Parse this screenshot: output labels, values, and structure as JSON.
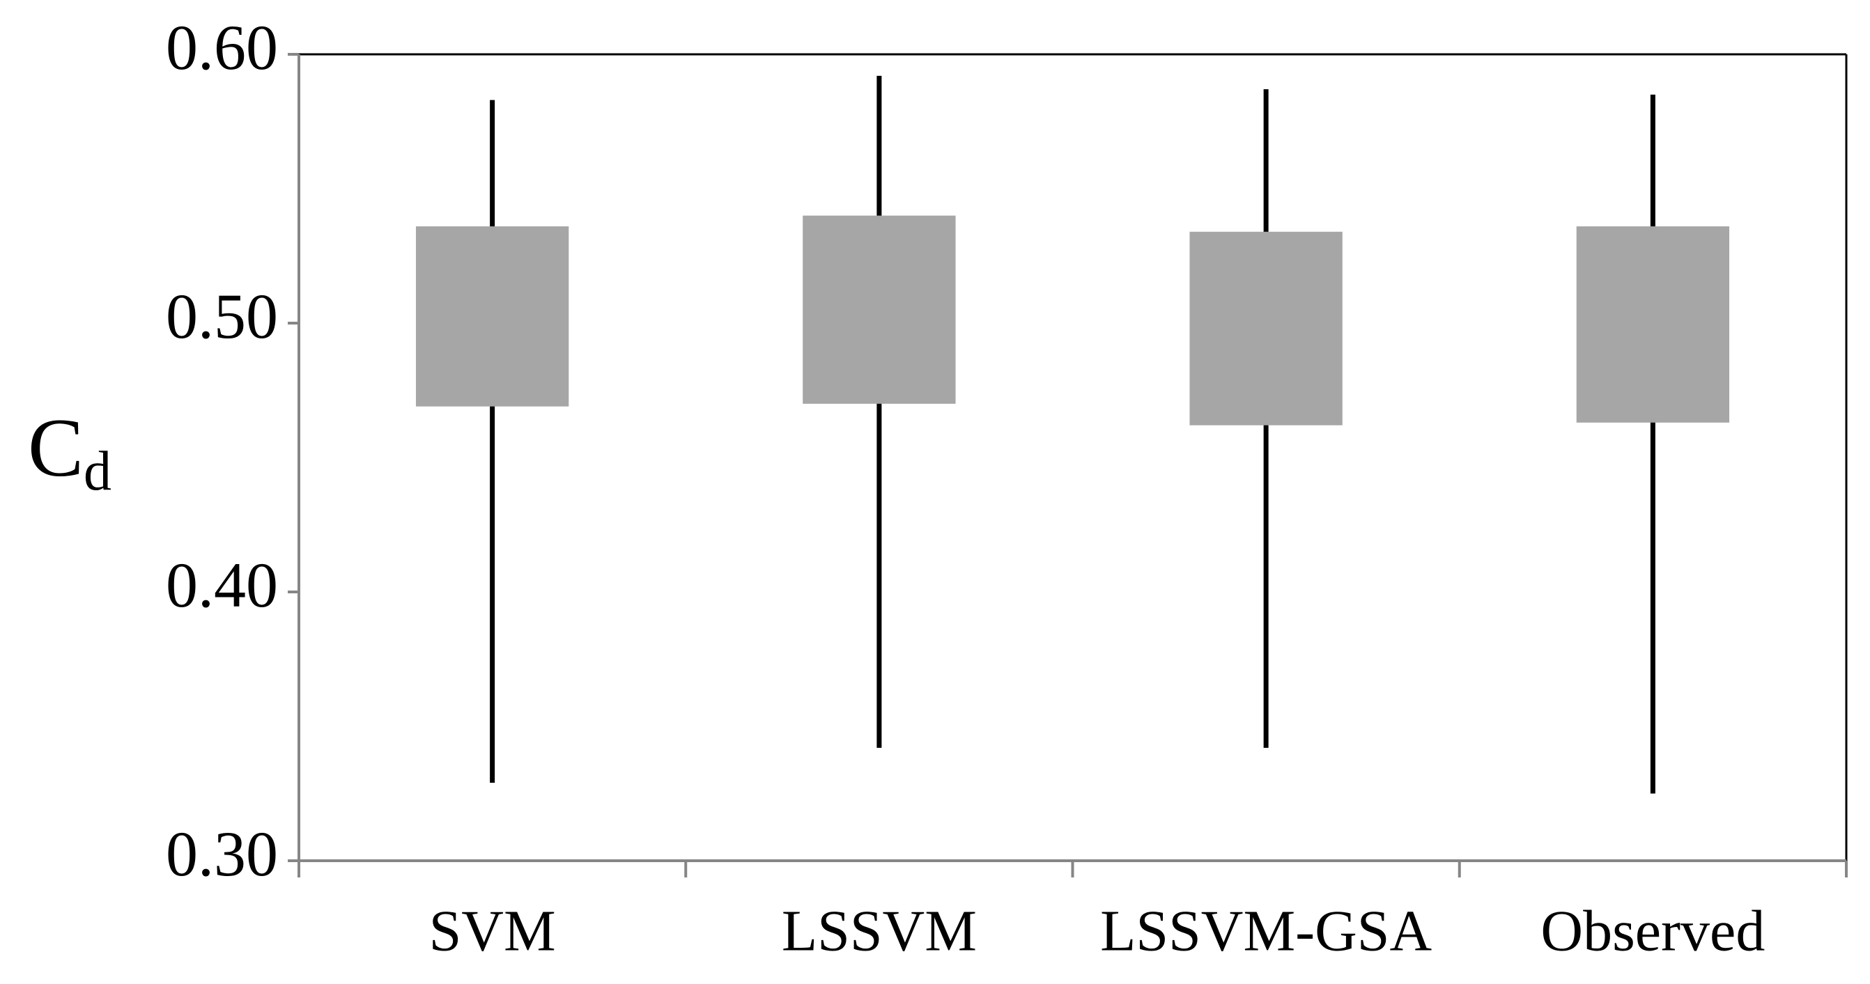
{
  "chart_data": {
    "type": "box",
    "y_label": "C",
    "y_label_subscript": "d",
    "categories": [
      "SVM",
      "LSSVM",
      "LSSVM-GSA",
      "Observed"
    ],
    "min": [
      0.329,
      0.342,
      0.342,
      0.325
    ],
    "q1": [
      0.469,
      0.47,
      0.462,
      0.463
    ],
    "q3": [
      0.536,
      0.54,
      0.534,
      0.536
    ],
    "max": [
      0.583,
      0.592,
      0.587,
      0.585
    ],
    "color": "#a6a6a6",
    "whisker_color": "#000000",
    "axis_color": "#868686",
    "ylim": [
      0.3,
      0.6
    ],
    "yticks": [
      {
        "value": 0.3,
        "label": "0.30"
      },
      {
        "value": 0.4,
        "label": "0.40"
      },
      {
        "value": 0.5,
        "label": "0.50"
      },
      {
        "value": 0.6,
        "label": "0.60"
      }
    ],
    "grid": false
  }
}
